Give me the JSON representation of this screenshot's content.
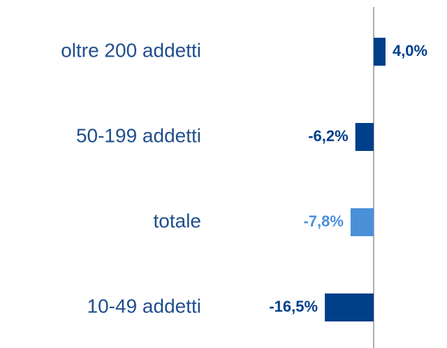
{
  "chart_data": {
    "type": "barh",
    "categories": [
      "oltre 200 addetti",
      "50-199 addetti",
      "totale",
      "10-49 addetti"
    ],
    "values": [
      4.0,
      -6.2,
      -7.8,
      -16.5
    ],
    "value_labels": [
      "4,0%",
      "-6,2%",
      "-7,8%",
      "-16,5%"
    ],
    "colors": [
      "#003f8a",
      "#003f8a",
      "#4a90d9",
      "#003f8a"
    ]
  }
}
